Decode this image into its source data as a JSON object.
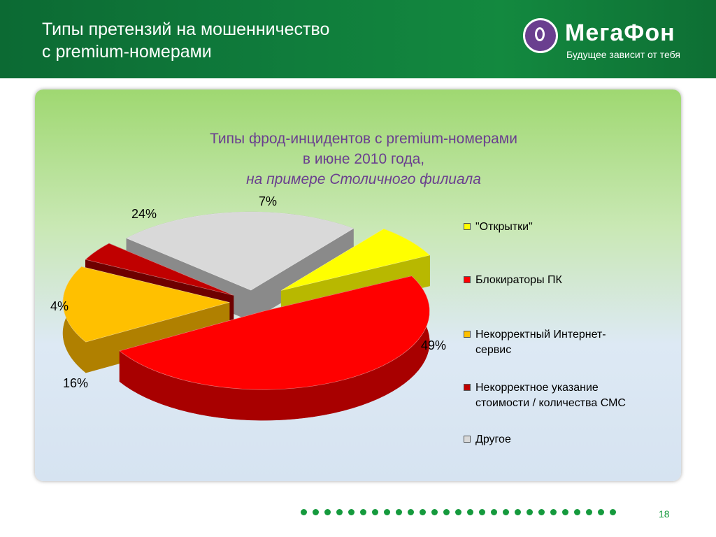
{
  "header": {
    "title_line1": "Типы претензий на мошенничество",
    "title_line2": "с premium-номерами"
  },
  "logo": {
    "name": "МегаФон",
    "tagline": "Будущее зависит от тебя"
  },
  "chart_data": {
    "type": "pie",
    "title_line1": "Типы фрод-инцидентов с premium-номерами",
    "title_line2": "в июне 2010 года,",
    "title_line3": "на примере Столичного филиала",
    "categories": [
      "\"Открытки\"",
      "Блокираторы ПК",
      "Некорректный Интернет-сервис",
      "Некорректное указание стоимости / количества СМС",
      "Другое"
    ],
    "values": [
      7,
      49,
      16,
      4,
      24
    ],
    "labels": [
      "7%",
      "49%",
      "16%",
      "4%",
      "24%"
    ],
    "legend_lines": [
      [
        "\"Открытки\""
      ],
      [
        "Блокираторы ПК"
      ],
      [
        "Некорректный Интернет-",
        "сервис"
      ],
      [
        "Некорректное указание",
        "стоимости / количества СМС"
      ],
      [
        "Другое"
      ]
    ],
    "colors": [
      "#ffff00",
      "#ff0000",
      "#ffc000",
      "#c00000",
      "#d9d9d9"
    ],
    "dark_colors": [
      "#b8b800",
      "#a80000",
      "#b08000",
      "#6e0000",
      "#8a8a8a"
    ],
    "legend": "right"
  },
  "footer": {
    "page_number": "18",
    "dot_count": 27,
    "accent": "#159a3d"
  }
}
